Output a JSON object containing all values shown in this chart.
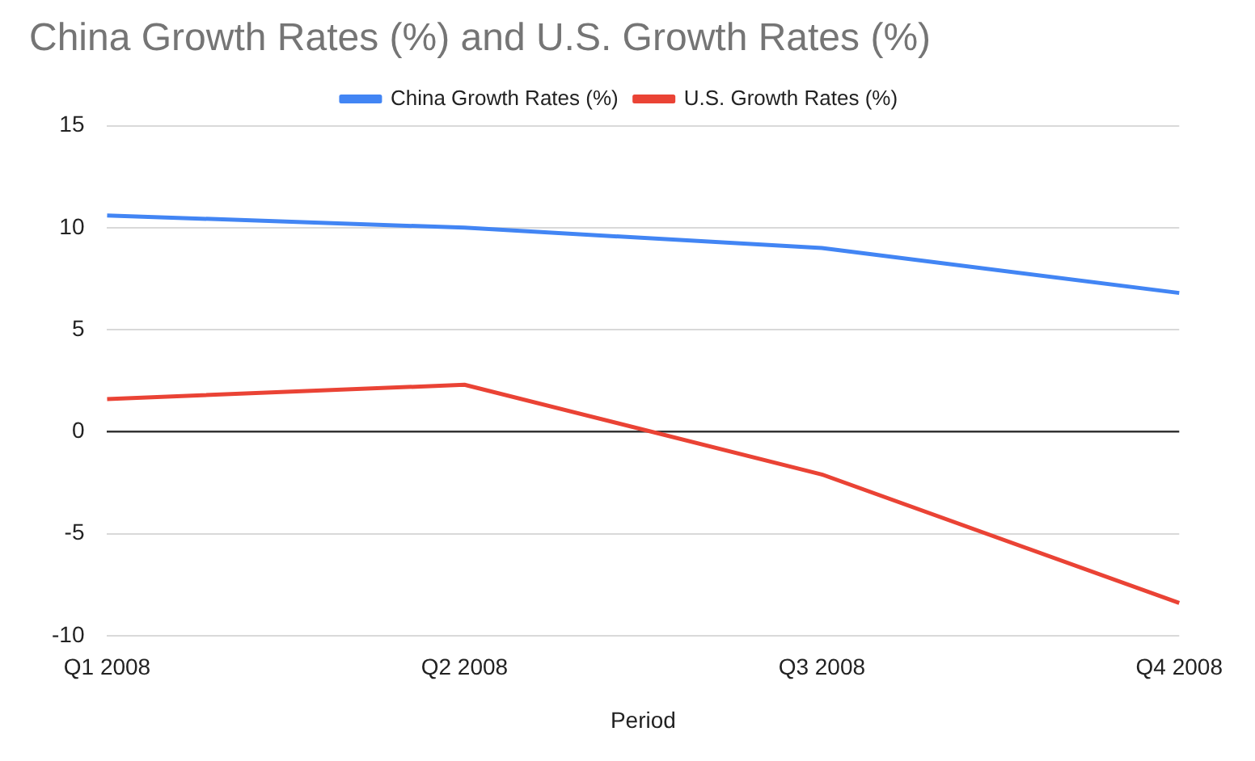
{
  "chart_data": {
    "type": "line",
    "title": "China Growth Rates (%) and U.S. Growth Rates (%)",
    "xlabel": "Period",
    "categories": [
      "Q1 2008",
      "Q2 2008",
      "Q3 2008",
      "Q4 2008"
    ],
    "series": [
      {
        "name": "China Growth Rates (%)",
        "color": "#4285f4",
        "values": [
          10.6,
          10.0,
          9.0,
          6.8
        ]
      },
      {
        "name": "U.S. Growth Rates (%)",
        "color": "#ea4335",
        "values": [
          1.6,
          2.3,
          -2.1,
          -8.4
        ]
      }
    ],
    "ylim": [
      -10,
      15
    ],
    "yticks": [
      -10,
      -5,
      0,
      5,
      10,
      15
    ],
    "grid": "y",
    "legend": "top",
    "marker": "none"
  }
}
